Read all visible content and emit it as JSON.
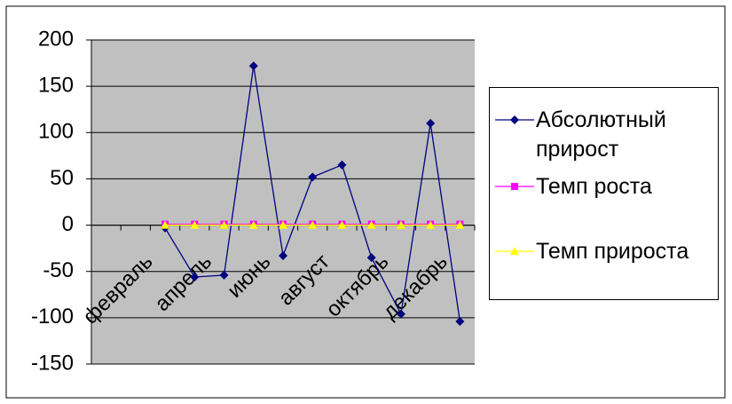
{
  "chart_data": {
    "type": "line",
    "categories": [
      null,
      "февраль",
      null,
      "апрель",
      null,
      "июнь",
      null,
      "август",
      null,
      "октябрь",
      null,
      "декабрь",
      null
    ],
    "series": [
      {
        "name": "Абсолютный прирост",
        "color": "#000080",
        "marker": "diamond",
        "values": [
          null,
          null,
          -3,
          -56,
          -54,
          172,
          -33,
          52,
          65,
          -35,
          -96,
          110,
          -104
        ]
      },
      {
        "name": "Темп роста",
        "color": "#ff00ff",
        "marker": "square",
        "values": [
          null,
          null,
          1,
          1,
          1,
          1,
          1,
          1,
          1,
          1,
          1,
          1,
          1
        ]
      },
      {
        "name": "Темп прироста",
        "color": "#ffff00",
        "marker": "triangle",
        "values": [
          null,
          null,
          0,
          0,
          0,
          0,
          0,
          0,
          0,
          0,
          0,
          0,
          0
        ]
      }
    ],
    "ylim": [
      -150,
      200
    ],
    "yticks": [
      -150,
      -100,
      -50,
      0,
      50,
      100,
      150,
      200
    ],
    "grid": true,
    "legend": "right"
  }
}
